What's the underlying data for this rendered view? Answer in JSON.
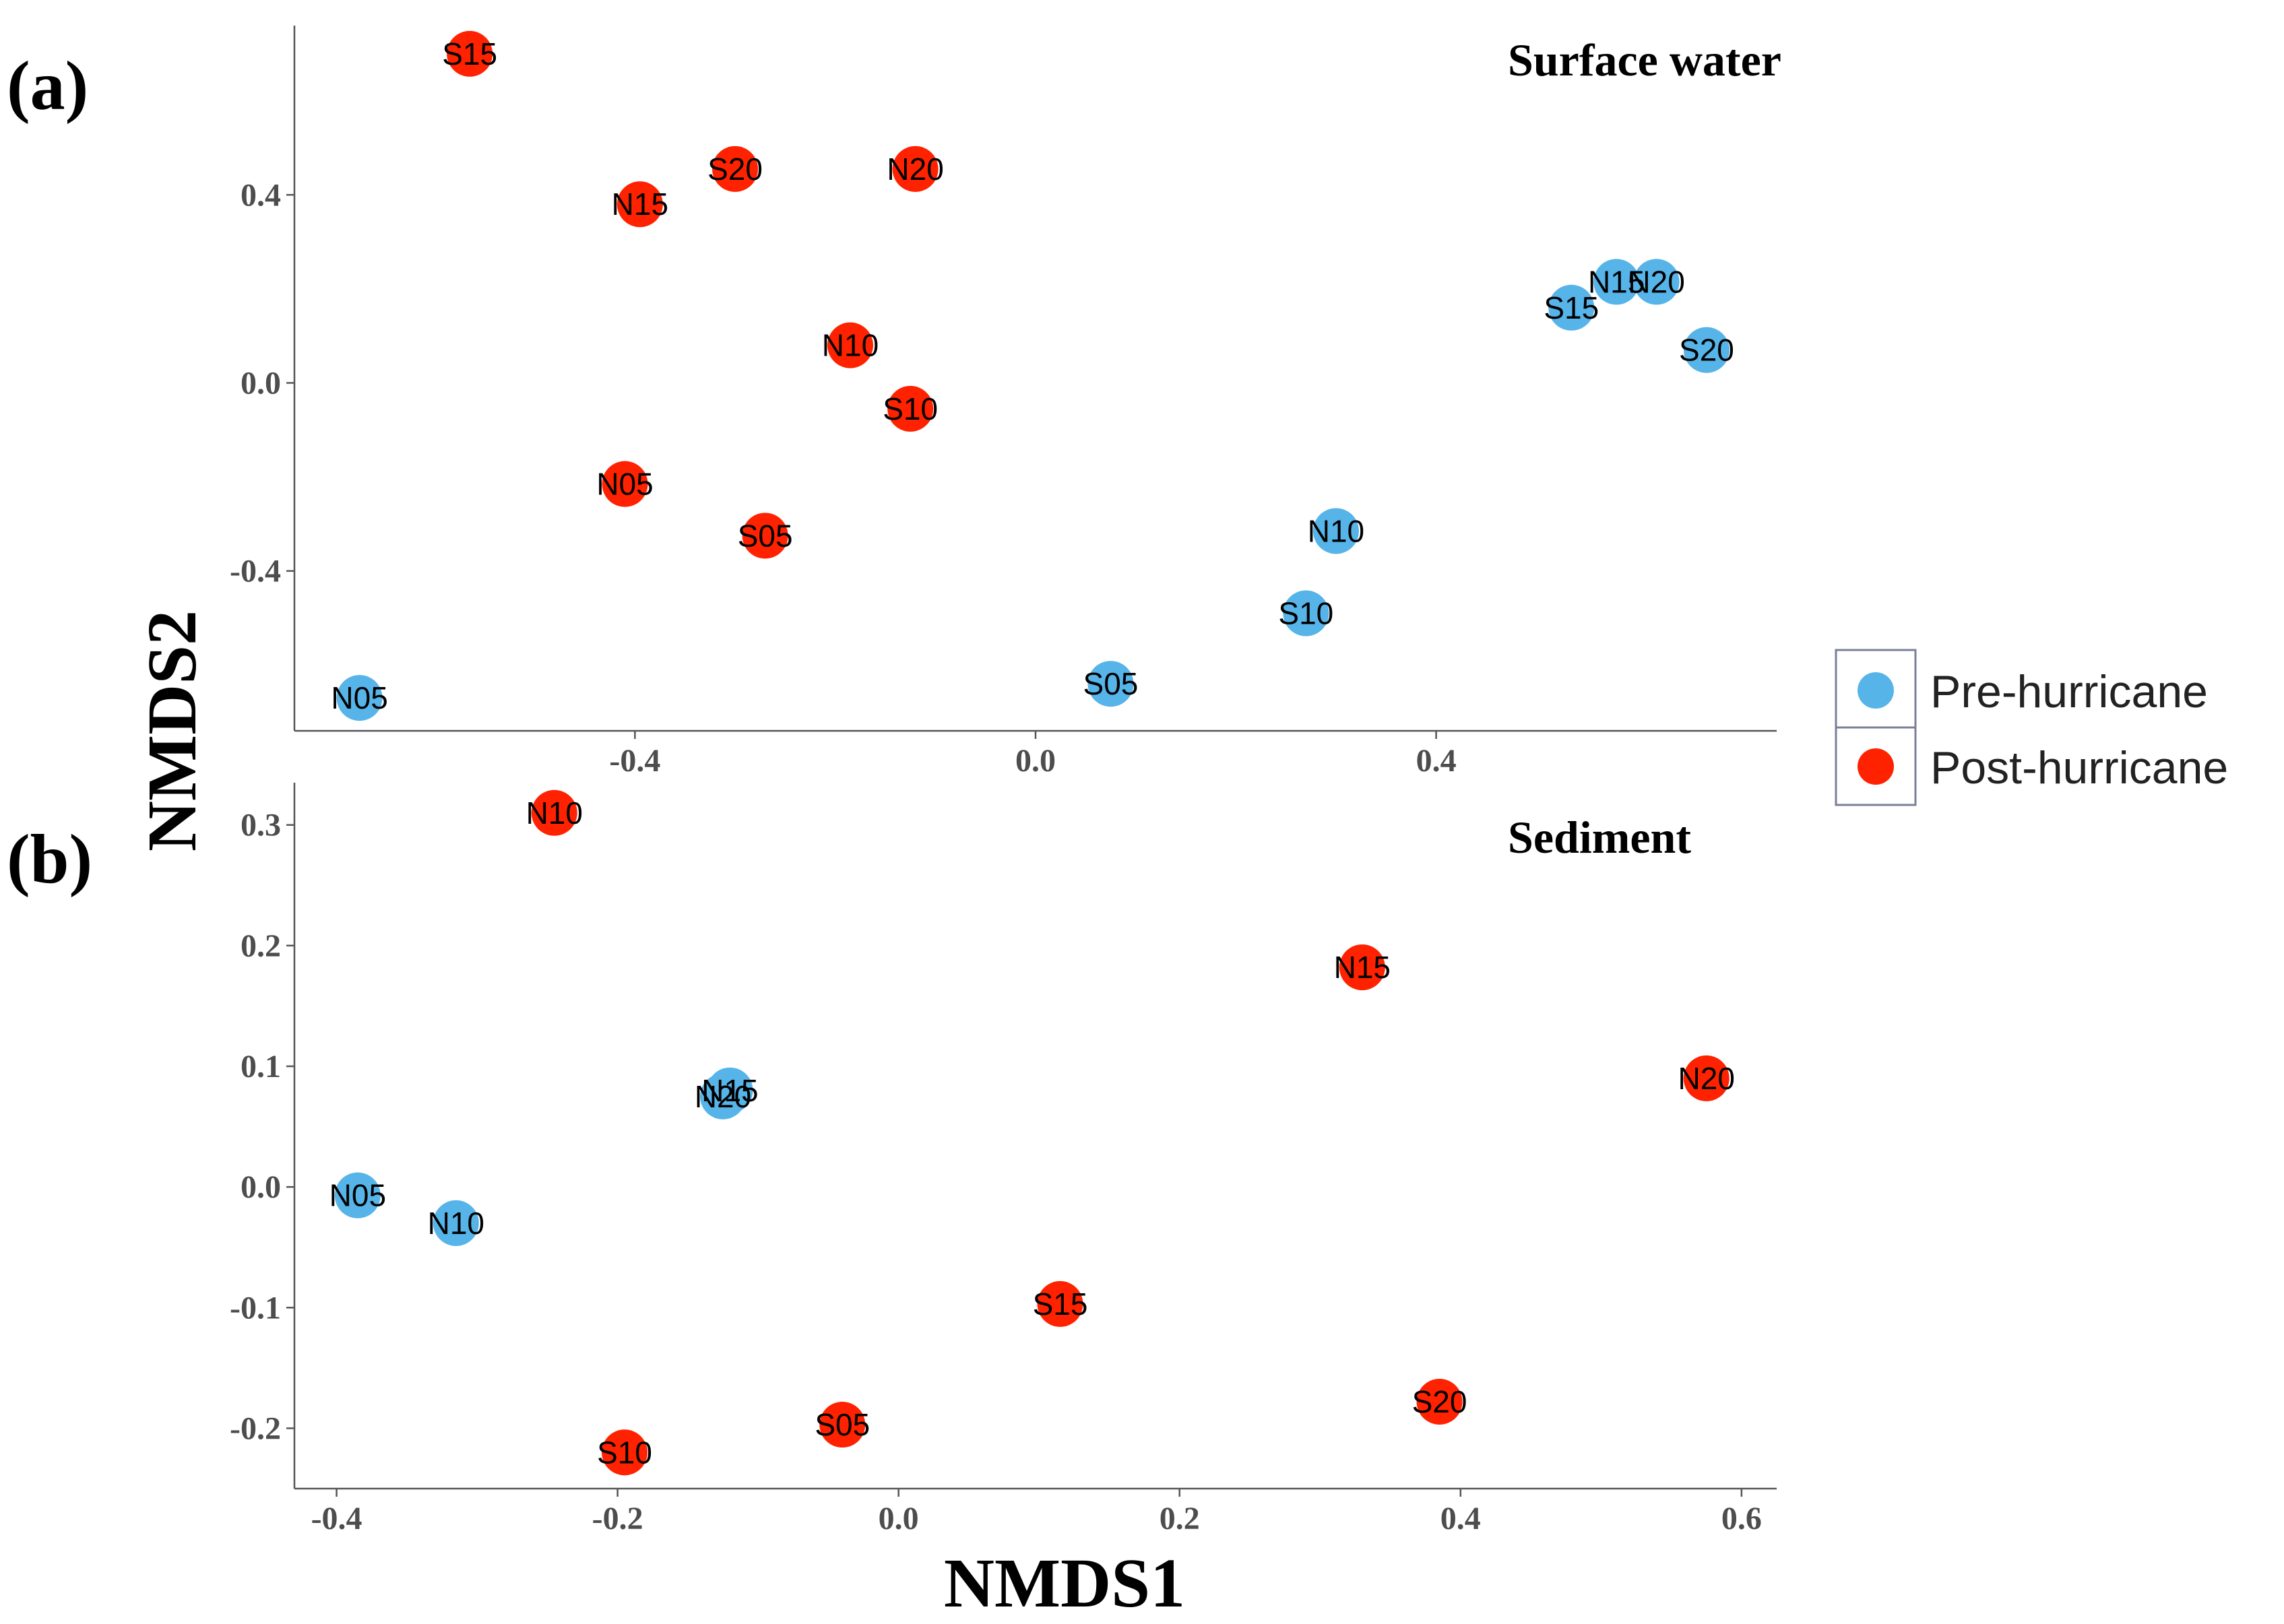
{
  "chart_data": [
    {
      "type": "scatter",
      "panel_label": "(a)",
      "title": "Surface water",
      "xlim": [
        -0.74,
        0.74
      ],
      "ylim": [
        -0.74,
        0.76
      ],
      "xticks": [
        -0.4,
        0.0,
        0.4
      ],
      "xtick_labels": [
        "-0.4",
        "0.0",
        "0.4"
      ],
      "yticks": [
        -0.4,
        0.0,
        0.4
      ],
      "ytick_labels": [
        "-0.4",
        "0.0",
        "0.4"
      ],
      "series": [
        {
          "name": "Pre-hurricane",
          "color": "#56b4e9",
          "points": [
            {
              "label": "N05",
              "x": -0.675,
              "y": -0.67
            },
            {
              "label": "S05",
              "x": 0.075,
              "y": -0.64
            },
            {
              "label": "S10",
              "x": 0.27,
              "y": -0.49
            },
            {
              "label": "N10",
              "x": 0.3,
              "y": -0.315
            },
            {
              "label": "S15",
              "x": 0.535,
              "y": 0.16
            },
            {
              "label": "N15",
              "x": 0.58,
              "y": 0.215
            },
            {
              "label": "N20",
              "x": 0.62,
              "y": 0.215
            },
            {
              "label": "S20",
              "x": 0.67,
              "y": 0.07
            }
          ]
        },
        {
          "name": "Post-hurricane",
          "color": "#ff2200",
          "points": [
            {
              "label": "S15",
              "x": -0.565,
              "y": 0.7
            },
            {
              "label": "N15",
              "x": -0.395,
              "y": 0.38
            },
            {
              "label": "S20",
              "x": -0.3,
              "y": 0.455
            },
            {
              "label": "N20",
              "x": -0.12,
              "y": 0.455
            },
            {
              "label": "N10",
              "x": -0.185,
              "y": 0.08
            },
            {
              "label": "S10",
              "x": -0.125,
              "y": -0.055
            },
            {
              "label": "N05",
              "x": -0.41,
              "y": -0.215
            },
            {
              "label": "S05",
              "x": -0.27,
              "y": -0.325
            }
          ]
        }
      ]
    },
    {
      "type": "scatter",
      "panel_label": "(b)",
      "title": "Sediment",
      "xlim": [
        -0.43,
        0.625
      ],
      "ylim": [
        -0.25,
        0.335
      ],
      "xticks": [
        -0.4,
        -0.2,
        0.0,
        0.2,
        0.4,
        0.6
      ],
      "xtick_labels": [
        "-0.4",
        "-0.2",
        "0.0",
        "0.2",
        "0.4",
        "0.6"
      ],
      "yticks": [
        -0.2,
        -0.1,
        0.0,
        0.1,
        0.2,
        0.3
      ],
      "ytick_labels": [
        "-0.2",
        "-0.1",
        "0.0",
        "0.1",
        "0.2",
        "0.3"
      ],
      "series": [
        {
          "name": "Pre-hurricane",
          "color": "#56b4e9",
          "points": [
            {
              "label": "N05",
              "x": -0.385,
              "y": -0.007
            },
            {
              "label": "N10",
              "x": -0.315,
              "y": -0.03
            },
            {
              "label": "N15",
              "x": -0.12,
              "y": 0.08
            },
            {
              "label": "N20",
              "x": -0.125,
              "y": 0.075
            }
          ]
        },
        {
          "name": "Post-hurricane",
          "color": "#ff2200",
          "points": [
            {
              "label": "N10",
              "x": -0.245,
              "y": 0.31
            },
            {
              "label": "N15",
              "x": 0.33,
              "y": 0.182
            },
            {
              "label": "N20",
              "x": 0.575,
              "y": 0.09
            },
            {
              "label": "S15",
              "x": 0.115,
              "y": -0.097
            },
            {
              "label": "S05",
              "x": -0.04,
              "y": -0.197
            },
            {
              "label": "S10",
              "x": -0.195,
              "y": -0.22
            },
            {
              "label": "S20",
              "x": 0.385,
              "y": -0.178
            }
          ]
        }
      ]
    }
  ],
  "xlabel": "NMDS1",
  "ylabel": "NMDS2",
  "legend": [
    {
      "label": "Pre-hurricane",
      "color": "#56b4e9"
    },
    {
      "label": "Post-hurricane",
      "color": "#ff2200"
    }
  ]
}
